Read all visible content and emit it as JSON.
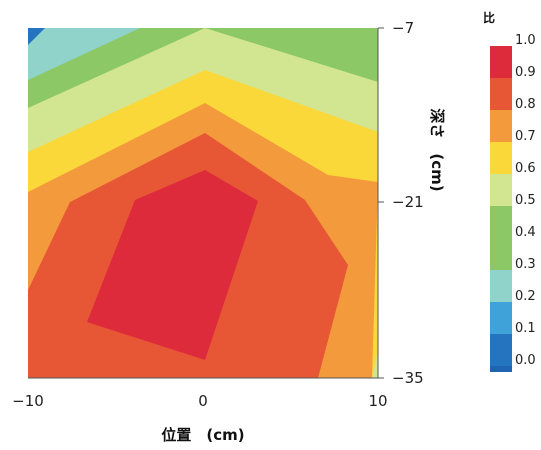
{
  "chart_data": {
    "type": "heatmap",
    "subtype": "filled-contour",
    "xlabel": "位置　(cm)",
    "ylabel": "深さ　(cm)",
    "colorbar_label": "比",
    "x_ticks": [
      "−10",
      "0",
      "10"
    ],
    "y_ticks": [
      "−7",
      "−21",
      "−35"
    ],
    "xlim": [
      -10,
      10
    ],
    "ylim": [
      -35,
      -7
    ],
    "colorbar_ticks": [
      "1.0",
      "0.9",
      "0.8",
      "0.7",
      "0.6",
      "0.5",
      "0.4",
      "0.3",
      "0.2",
      "0.1",
      "0.0"
    ],
    "levels": [
      {
        "value": 0.0,
        "color": "#1f63b5"
      },
      {
        "value": 0.1,
        "color": "#2474c0"
      },
      {
        "value": 0.2,
        "color": "#3fa2d9"
      },
      {
        "value": 0.3,
        "color": "#8fd3cb"
      },
      {
        "value": 0.4,
        "color": "#8cc866"
      },
      {
        "value": 0.5,
        "color": "#8cc866"
      },
      {
        "value": 0.6,
        "color": "#d2e591"
      },
      {
        "value": 0.7,
        "color": "#fbd83a"
      },
      {
        "value": 0.8,
        "color": "#f39a3c"
      },
      {
        "value": 0.9,
        "color": "#e75635"
      },
      {
        "value": 1.0,
        "color": "#dd2b3c"
      }
    ],
    "grid": false
  }
}
